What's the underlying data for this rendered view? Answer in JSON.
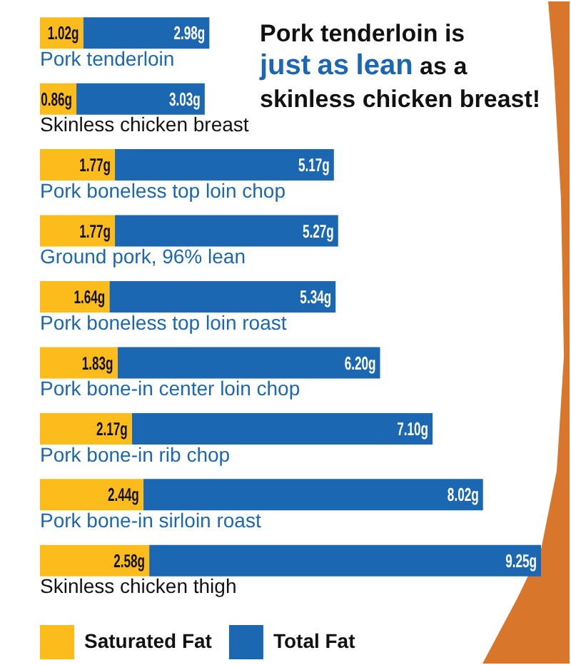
{
  "chart_data": {
    "type": "bar",
    "orientation": "horizontal",
    "stacked": true,
    "title": "Pork tenderloin is just as lean as a skinless chicken breast!",
    "categories": [
      "Pork tenderloin",
      "Skinless chicken breast",
      "Pork boneless top loin chop",
      "Ground pork, 96% lean",
      "Pork boneless top loin roast",
      "Pork bone-in center loin chop",
      "Pork bone-in rib chop",
      "Pork bone-in sirloin roast",
      "Skinless chicken thigh"
    ],
    "series": [
      {
        "name": "Saturated Fat",
        "color": "#fcbd1c",
        "values": [
          1.02,
          0.86,
          1.77,
          1.77,
          1.64,
          1.83,
          2.17,
          2.44,
          2.58
        ],
        "value_labels": [
          "1.02g",
          "0.86g",
          "1.77g",
          "1.77g",
          "1.64g",
          "1.83g",
          "2.17g",
          "2.44g",
          "2.58g"
        ]
      },
      {
        "name": "Total Fat",
        "color": "#1b67b2",
        "values": [
          2.98,
          3.03,
          5.17,
          5.27,
          5.34,
          6.2,
          7.1,
          8.02,
          9.25
        ],
        "value_labels": [
          "2.98g",
          "3.03g",
          "5.17g",
          "5.27g",
          "5.34g",
          "6.20g",
          "7.10g",
          "8.02g",
          "9.25g"
        ]
      }
    ],
    "legend": "bottom left",
    "grid": false
  }
}
